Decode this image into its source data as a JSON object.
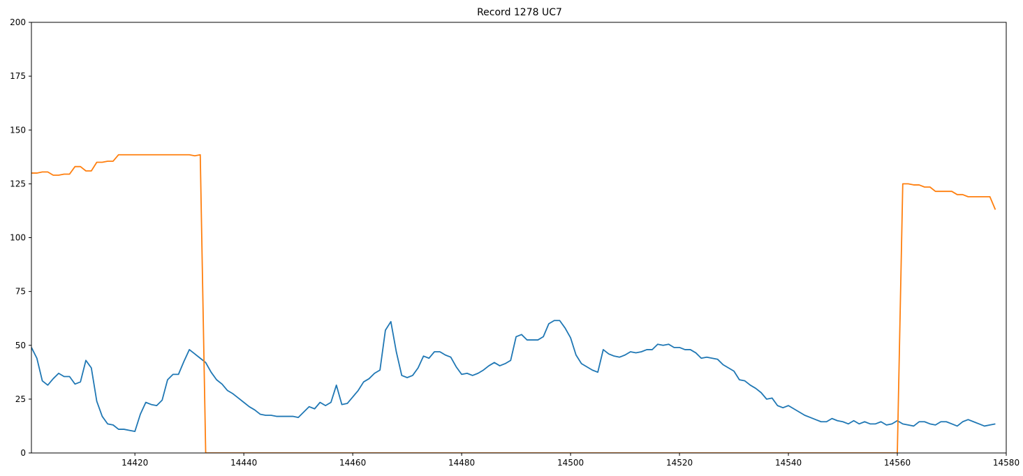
{
  "chart_data": {
    "type": "line",
    "title": "Record 1278 UC7",
    "xlabel": "",
    "ylabel": "",
    "xlim": [
      14401,
      14580
    ],
    "ylim": [
      0,
      200
    ],
    "xticks": [
      14420,
      14440,
      14460,
      14480,
      14500,
      14520,
      14540,
      14560,
      14580
    ],
    "yticks": [
      0,
      25,
      50,
      75,
      100,
      125,
      150,
      175,
      200
    ],
    "xtick_labels": [
      "14420",
      "14440",
      "14460",
      "14480",
      "14500",
      "14520",
      "14540",
      "14560",
      "14580"
    ],
    "ytick_labels": [
      "0",
      "25",
      "50",
      "75",
      "100",
      "125",
      "150",
      "175",
      "200"
    ],
    "grid": false,
    "legend": "none",
    "series": [
      {
        "color": "#1f77b4",
        "x": [
          14401,
          14402,
          14403,
          14404,
          14405,
          14406,
          14407,
          14408,
          14409,
          14410,
          14411,
          14412,
          14413,
          14414,
          14415,
          14416,
          14417,
          14418,
          14419,
          14420,
          14421,
          14422,
          14423,
          14424,
          14425,
          14426,
          14427,
          14428,
          14429,
          14430,
          14431,
          14432,
          14433,
          14434,
          14435,
          14436,
          14437,
          14438,
          14439,
          14440,
          14441,
          14442,
          14443,
          14444,
          14445,
          14446,
          14447,
          14448,
          14449,
          14450,
          14451,
          14452,
          14453,
          14454,
          14455,
          14456,
          14457,
          14458,
          14459,
          14460,
          14461,
          14462,
          14463,
          14464,
          14465,
          14466,
          14467,
          14468,
          14469,
          14470,
          14471,
          14472,
          14473,
          14474,
          14475,
          14476,
          14477,
          14478,
          14479,
          14480,
          14481,
          14482,
          14483,
          14484,
          14485,
          14486,
          14487,
          14488,
          14489,
          14490,
          14491,
          14492,
          14493,
          14494,
          14495,
          14496,
          14497,
          14498,
          14499,
          14500,
          14501,
          14502,
          14503,
          14504,
          14505,
          14506,
          14507,
          14508,
          14509,
          14510,
          14511,
          14512,
          14513,
          14514,
          14515,
          14516,
          14517,
          14518,
          14519,
          14520,
          14521,
          14522,
          14523,
          14524,
          14525,
          14526,
          14527,
          14528,
          14529,
          14530,
          14531,
          14532,
          14533,
          14534,
          14535,
          14536,
          14537,
          14538,
          14539,
          14540,
          14541,
          14542,
          14543,
          14544,
          14545,
          14546,
          14547,
          14548,
          14549,
          14550,
          14551,
          14552,
          14553,
          14554,
          14555,
          14556,
          14557,
          14558,
          14559,
          14560,
          14561,
          14562,
          14563,
          14564,
          14565,
          14566,
          14567,
          14568,
          14569,
          14570,
          14571,
          14572,
          14573,
          14574,
          14575,
          14576,
          14577,
          14578
        ],
        "y": [
          49,
          44,
          33.5,
          31.5,
          34.5,
          37,
          35.5,
          35.5,
          32,
          33,
          43,
          39.5,
          24,
          17,
          13.5,
          13,
          11,
          11,
          10.5,
          10,
          18,
          23.5,
          22.5,
          22,
          24.5,
          34,
          36.5,
          36.5,
          42.5,
          48,
          46,
          44,
          42,
          37.5,
          34,
          32,
          29,
          27.5,
          25.5,
          23.5,
          21.5,
          20,
          18,
          17.5,
          17.5,
          17,
          17,
          17,
          17,
          16.5,
          19,
          21.5,
          20.5,
          23.5,
          22,
          23.5,
          31.5,
          22.5,
          23,
          26,
          29,
          33,
          34.5,
          37,
          38.5,
          57,
          61,
          47,
          36,
          35,
          36,
          39.5,
          45,
          44,
          47,
          47,
          45.5,
          44.5,
          40,
          36.5,
          37,
          36,
          37,
          38.5,
          40.5,
          42,
          40.5,
          41.5,
          43,
          54,
          55,
          52.5,
          52.5,
          52.5,
          54,
          60,
          61.5,
          61.5,
          58,
          53.5,
          45.5,
          41.5,
          40,
          38.5,
          37.5,
          48,
          46,
          45,
          44.5,
          45.5,
          47,
          46.5,
          47,
          48,
          48,
          50.5,
          50,
          50.5,
          49,
          49,
          48,
          48,
          46.5,
          44,
          44.5,
          44,
          43.5,
          41,
          39.5,
          38,
          34,
          33.5,
          31.5,
          30,
          28,
          25,
          25.5,
          22,
          21,
          22,
          20.5,
          19,
          17.5,
          16.5,
          15.5,
          14.5,
          14.5,
          16,
          15,
          14.5,
          13.5,
          15,
          13.5,
          14.5,
          13.5,
          13.5,
          14.5,
          13,
          13.5,
          15,
          13.5,
          13,
          12.5,
          14.5,
          14.5,
          13.5,
          13,
          14.5,
          14.5,
          13.5,
          12.5,
          14.5,
          15.5,
          14.5,
          13.5,
          12.5,
          13,
          13.5
        ]
      },
      {
        "color": "#ff7f0e",
        "x": [
          14401,
          14402,
          14403,
          14404,
          14405,
          14406,
          14407,
          14408,
          14409,
          14410,
          14411,
          14412,
          14413,
          14414,
          14415,
          14416,
          14417,
          14418,
          14419,
          14420,
          14421,
          14422,
          14423,
          14424,
          14425,
          14426,
          14427,
          14428,
          14429,
          14430,
          14431,
          14432,
          14433,
          14434,
          14560,
          14561,
          14562,
          14563,
          14564,
          14565,
          14566,
          14567,
          14568,
          14569,
          14570,
          14571,
          14572,
          14573,
          14574,
          14575,
          14576,
          14577,
          14578
        ],
        "y": [
          130,
          130,
          130.5,
          130.5,
          129,
          129,
          129.5,
          129.5,
          133,
          133,
          131,
          131,
          135,
          135,
          135.5,
          135.5,
          138.5,
          138.5,
          138.5,
          138.5,
          138.5,
          138.5,
          138.5,
          138.5,
          138.5,
          138.5,
          138.5,
          138.5,
          138.5,
          138.5,
          138,
          138.5,
          0,
          0,
          0,
          125,
          125,
          124.5,
          124.5,
          123.5,
          123.5,
          121.5,
          121.5,
          121.5,
          121.5,
          120,
          120,
          119,
          119,
          119,
          119,
          119,
          113
        ]
      }
    ]
  }
}
